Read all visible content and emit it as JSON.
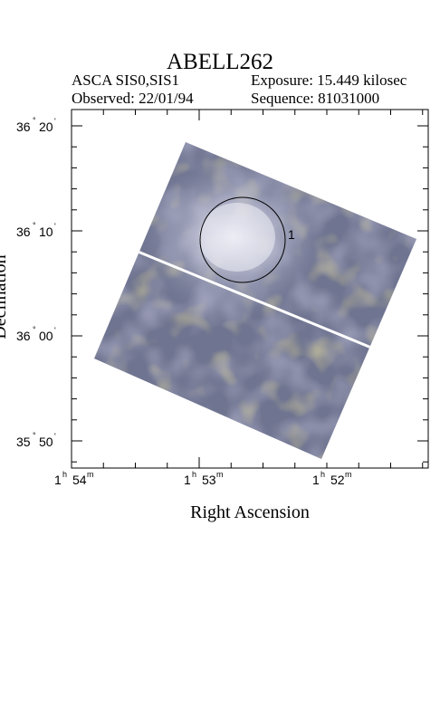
{
  "header": {
    "title": "ABELL262",
    "instrument": "ASCA SIS0,SIS1",
    "observed": "Observed: 22/01/94",
    "exposure": "Exposure: 15.449 kilosec",
    "sequence": "Sequence: 81031000"
  },
  "axes": {
    "xlabel": "Right Ascension",
    "ylabel": "Declination",
    "x_ticks": [
      {
        "h": "1",
        "hs": "h",
        "m": "54",
        "ms": "m"
      },
      {
        "h": "1",
        "hs": "h",
        "m": "53",
        "ms": "m"
      },
      {
        "h": "1",
        "hs": "h",
        "m": "52",
        "ms": "m"
      }
    ],
    "y_ticks": [
      {
        "deg": "36",
        "min": "20",
        "sym": "'"
      },
      {
        "deg": "36",
        "min": "10",
        "sym": "'"
      },
      {
        "deg": "36",
        "min": "00",
        "sym": "'"
      },
      {
        "deg": "35",
        "min": "50",
        "sym": "'"
      }
    ]
  },
  "image": {
    "region_label": "1",
    "colors": {
      "base": "#6f7490",
      "bright": "#e8e8f2",
      "blue": "#5a6c9a",
      "olive": "#857d5e",
      "gap": "#ffffff"
    }
  }
}
